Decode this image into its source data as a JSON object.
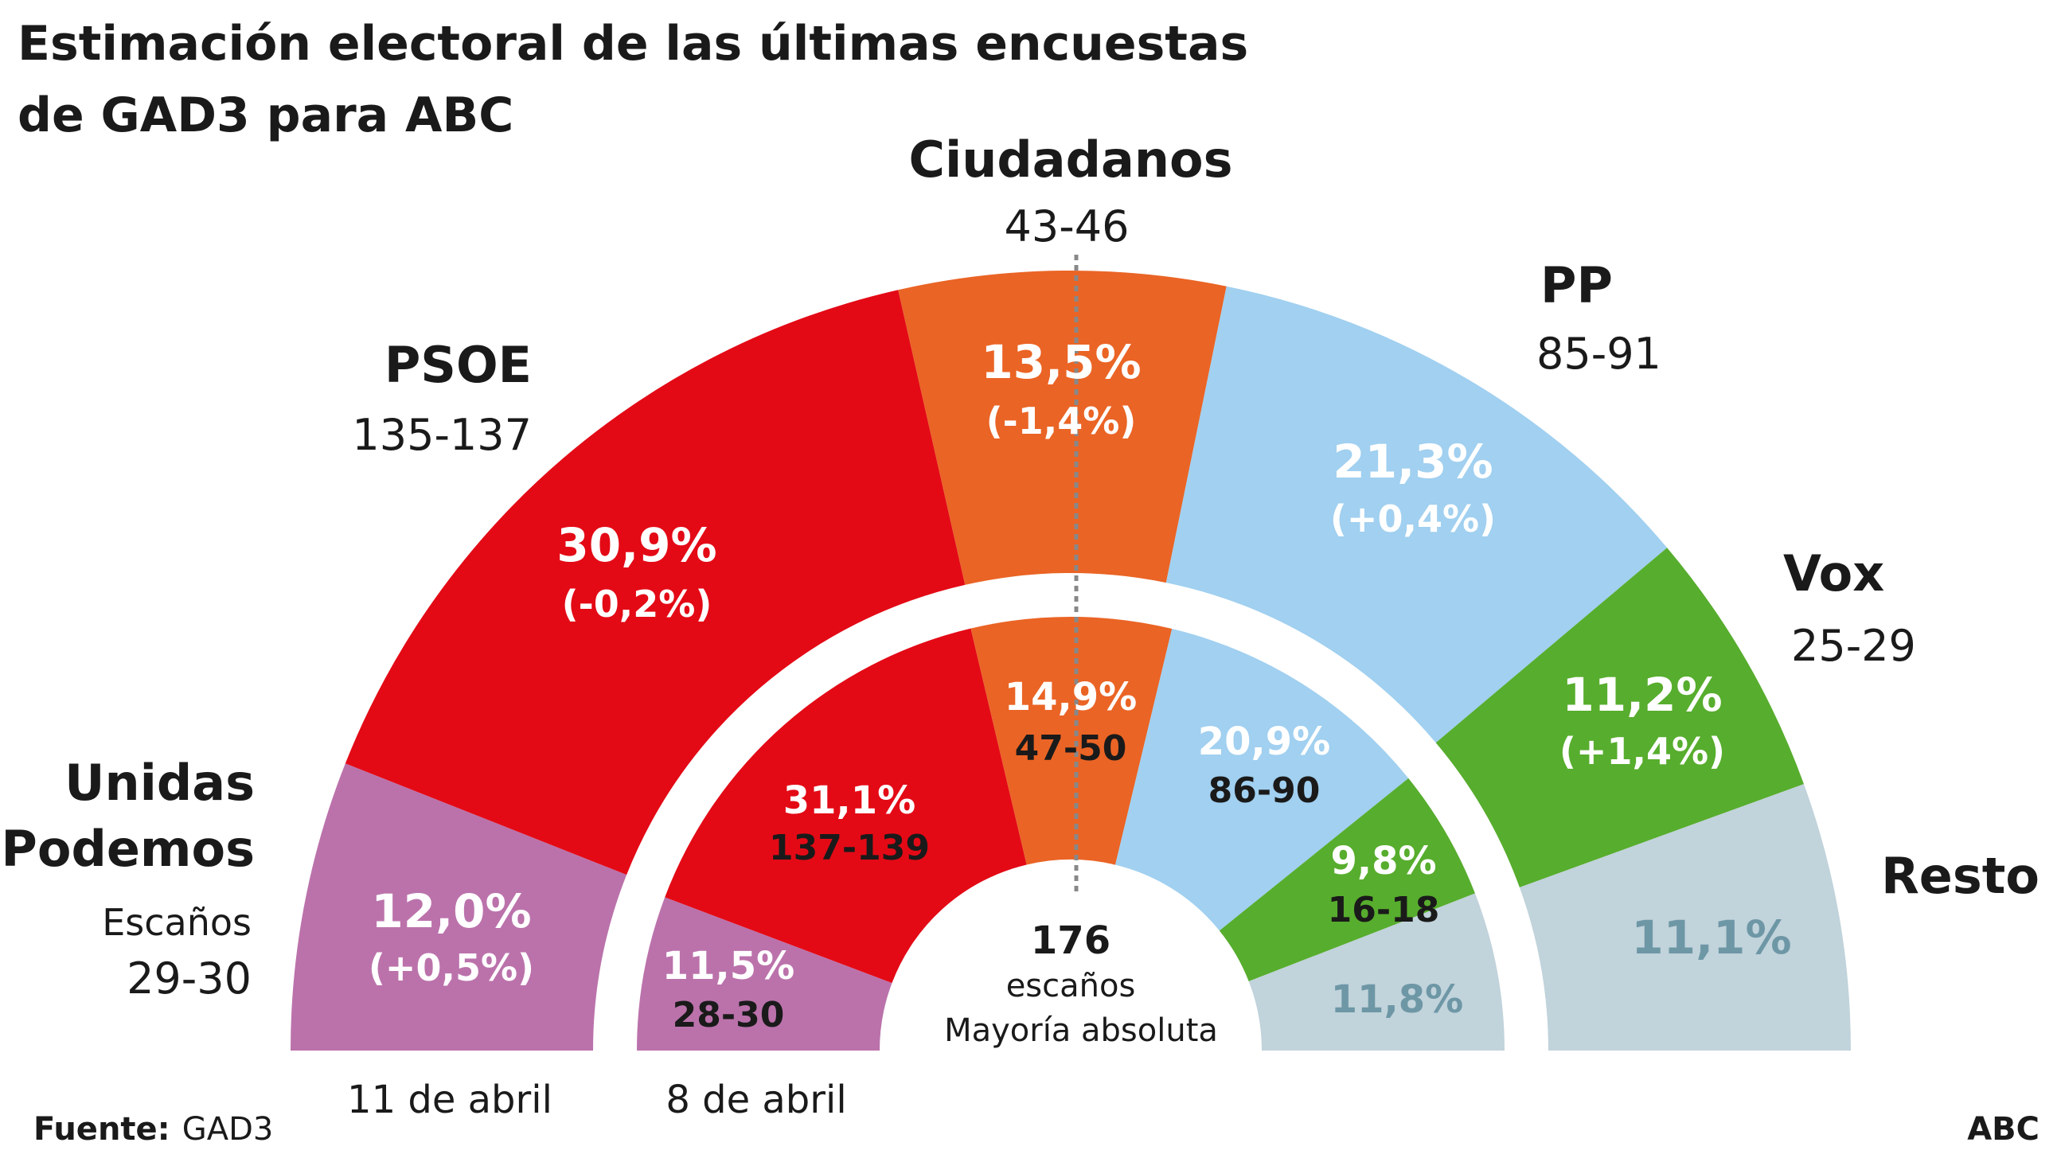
{
  "title_line1": "Estimación electoral de las últimas encuestas",
  "title_line2": "de GAD3 para ABC",
  "colors": {
    "unidas_podemos": "#bb72ab",
    "psoe": "#e30a16",
    "ciudadanos": "#ea6425",
    "pp": "#a1d0f0",
    "vox": "#57ad2d",
    "resto": "#c1d3db",
    "resto_text": "#6e97a6",
    "majority_line": "#888888"
  },
  "labels": {
    "unidas_line1": "Unidas",
    "unidas_line2": "Podemos",
    "unidas_escanos": "Escaños",
    "unidas_seats": "29-30",
    "psoe": "PSOE",
    "psoe_seats": "135-137",
    "ciudadanos": "Ciudadanos",
    "ciudadanos_seats": "43-46",
    "pp": "PP",
    "pp_seats": "85-91",
    "vox": "Vox",
    "vox_seats": "25-29",
    "resto": "Resto"
  },
  "center": {
    "number": "176",
    "line1": "escaños",
    "line2": "Mayoría absoluta"
  },
  "dates": {
    "outer": "11 de abril",
    "inner": "8 de abril"
  },
  "footer": {
    "source_label": "Fuente:",
    "source_value": "GAD3",
    "brand": "ABC"
  },
  "chart_data": {
    "type": "pie",
    "majority_seats": 176,
    "series": [
      {
        "name": "11 de abril",
        "values": [
          {
            "party": "Unidas Podemos",
            "pct": 12.0,
            "pct_label": "12,0%",
            "change": "(+0,5%)",
            "seats": "29-30"
          },
          {
            "party": "PSOE",
            "pct": 30.9,
            "pct_label": "30,9%",
            "change": "(-0,2%)",
            "seats": "135-137"
          },
          {
            "party": "Ciudadanos",
            "pct": 13.5,
            "pct_label": "13,5%",
            "change": "(-1,4%)",
            "seats": "43-46"
          },
          {
            "party": "PP",
            "pct": 21.3,
            "pct_label": "21,3%",
            "change": "(+0,4%)",
            "seats": "85-91"
          },
          {
            "party": "Vox",
            "pct": 11.2,
            "pct_label": "11,2%",
            "change": "(+1,4%)",
            "seats": "25-29"
          },
          {
            "party": "Resto",
            "pct": 11.1,
            "pct_label": "11,1%",
            "change": "",
            "seats": ""
          }
        ]
      },
      {
        "name": "8 de abril",
        "values": [
          {
            "party": "Unidas Podemos",
            "pct": 11.5,
            "pct_label": "11,5%",
            "seats": "28-30"
          },
          {
            "party": "PSOE",
            "pct": 31.1,
            "pct_label": "31,1%",
            "seats": "137-139"
          },
          {
            "party": "Ciudadanos",
            "pct": 14.9,
            "pct_label": "14,9%",
            "seats": "47-50"
          },
          {
            "party": "PP",
            "pct": 20.9,
            "pct_label": "20,9%",
            "seats": "86-90"
          },
          {
            "party": "Vox",
            "pct": 9.8,
            "pct_label": "9,8%",
            "seats": "16-18"
          },
          {
            "party": "Resto",
            "pct": 11.8,
            "pct_label": "11,8%",
            "seats": ""
          }
        ]
      }
    ]
  }
}
